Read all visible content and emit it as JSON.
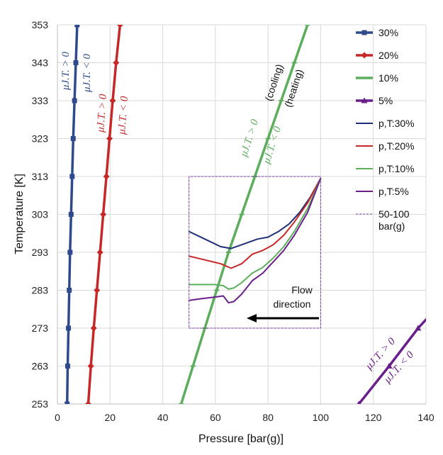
{
  "chart_data": {
    "type": "line",
    "xlabel": "Pressure [bar(g)]",
    "ylabel": "Temperature [K]",
    "xlim": [
      0,
      140
    ],
    "ylim": [
      253,
      353
    ],
    "xticks": [
      0,
      20,
      40,
      60,
      80,
      100,
      120,
      140
    ],
    "yticks": [
      253,
      263,
      273,
      283,
      293,
      303,
      313,
      323,
      333,
      343,
      353
    ],
    "grid": true,
    "legend_position": "top-right",
    "series": [
      {
        "name": "30%",
        "color": "#2e4a8c",
        "marker": "square",
        "x": [
          3.7,
          3.9,
          4.2,
          4.5,
          4.8,
          5.2,
          5.6,
          6.0,
          6.5,
          7.0,
          7.5
        ],
        "y": [
          253,
          263,
          273,
          283,
          293,
          303,
          313,
          323,
          333,
          343,
          353
        ]
      },
      {
        "name": "20%",
        "color": "#c62828",
        "marker": "diamond",
        "x": [
          11.7,
          12.7,
          13.8,
          15.0,
          16.2,
          17.4,
          18.6,
          19.8,
          21.0,
          22.3,
          23.8
        ],
        "y": [
          253,
          263,
          273,
          283,
          293,
          303,
          313,
          323,
          333,
          343,
          353
        ]
      },
      {
        "name": "10%",
        "color": "#5cad5c",
        "marker": "dash",
        "x": [
          47.0,
          51.5,
          56.0,
          60.5,
          65.0,
          70.0,
          75.0,
          80.0,
          85.0,
          90.0,
          95.0
        ],
        "y": [
          253,
          263,
          273,
          283,
          293,
          303,
          313,
          323,
          333,
          343,
          353
        ]
      },
      {
        "name": "5%",
        "color": "#6a1f8a",
        "marker": "triangle",
        "x": [
          114.5,
          126,
          137,
          141
        ],
        "y": [
          253,
          263,
          273,
          276
        ]
      },
      {
        "name": "p,T:30%",
        "color": "#1f2f7a",
        "marker": "none",
        "x": [
          50,
          56,
          62,
          66,
          70,
          76,
          80,
          84,
          88,
          92,
          96,
          100
        ],
        "y": [
          298.5,
          296.5,
          294.5,
          294,
          295,
          296.5,
          297,
          298.5,
          300.5,
          303.5,
          307.5,
          312.5
        ]
      },
      {
        "name": "p,T:20%",
        "color": "#c62828",
        "marker": "none",
        "x": [
          50,
          56,
          62,
          66,
          70,
          74,
          78,
          82,
          86,
          90,
          95,
          100
        ],
        "y": [
          292,
          291,
          290,
          288.8,
          290,
          292.5,
          293.5,
          295,
          297.5,
          301,
          306,
          312.5
        ]
      },
      {
        "name": "p,T:10%",
        "color": "#5cad5c",
        "marker": "none",
        "x": [
          50,
          55,
          60,
          63,
          65,
          67,
          70,
          74,
          78,
          82,
          86,
          90,
          95,
          100
        ],
        "y": [
          284.5,
          284.5,
          284.5,
          284.2,
          283.3,
          283.6,
          285,
          287.5,
          289,
          291.5,
          294.5,
          298.5,
          304.5,
          312.5
        ]
      },
      {
        "name": "p,T:5%",
        "color": "#6a1f8a",
        "marker": "none",
        "x": [
          50,
          55,
          60,
          63,
          65,
          67,
          70,
          74,
          78,
          82,
          86,
          90,
          95,
          100
        ],
        "y": [
          280.3,
          280.8,
          281.2,
          281.5,
          279.7,
          280,
          282,
          285.5,
          287.5,
          290.5,
          293.5,
          297.5,
          303.5,
          312.5
        ]
      },
      {
        "name": "50-100 bar(g)",
        "color": "#7b3fa0",
        "marker": "none",
        "dashed": true,
        "x": [
          50,
          100,
          100,
          50,
          50
        ],
        "y": [
          273,
          273,
          313,
          313,
          273
        ]
      }
    ],
    "annotations": {
      "mu_gt": "μJ.T. > 0",
      "mu_lt": "μJ.T. < 0",
      "cooling": "(cooling)",
      "heating": "(heating)",
      "flow": [
        "Flow",
        "direction"
      ]
    }
  }
}
